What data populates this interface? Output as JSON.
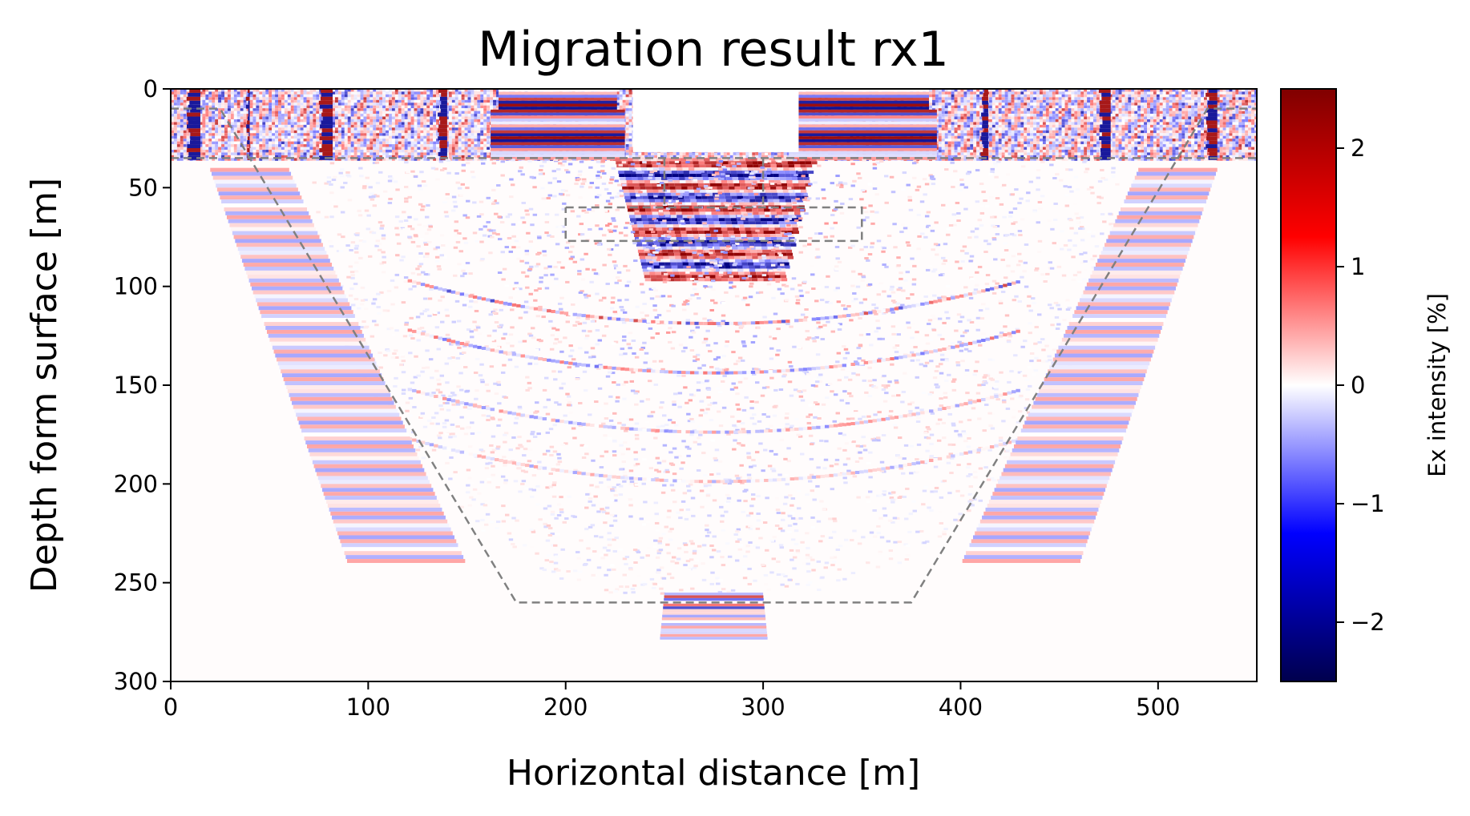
{
  "chart_data": {
    "type": "heatmap",
    "title": "Migration result rx1",
    "xlabel": "Horizontal distance [m]",
    "ylabel": "Depth form surface [m]",
    "xlim": [
      0,
      550
    ],
    "ylim": [
      300,
      0
    ],
    "x_ticks": [
      0,
      100,
      200,
      300,
      400,
      500
    ],
    "x_tick_labels": [
      "0",
      "100",
      "200",
      "300",
      "400",
      "500"
    ],
    "y_ticks": [
      0,
      50,
      100,
      150,
      200,
      250,
      300
    ],
    "y_tick_labels": [
      "0",
      "50",
      "100",
      "150",
      "200",
      "250",
      "300"
    ],
    "colormap": "seismic",
    "colorbar": {
      "label": "Ex intensity [%]",
      "range": [
        -2.5,
        2.5
      ],
      "ticks": [
        2,
        1,
        0,
        -1,
        -2
      ],
      "tick_labels": [
        "2",
        "1",
        "0",
        "−1",
        "−2"
      ]
    },
    "overlays": [
      {
        "name": "outer-trapezoid",
        "style": "dashed",
        "color": "#808080",
        "points": [
          [
            0,
            10
          ],
          [
            25,
            10
          ],
          [
            40,
            35
          ],
          [
            175,
            260
          ],
          [
            375,
            260
          ],
          [
            510,
            35
          ],
          [
            525,
            10
          ],
          [
            550,
            10
          ]
        ]
      },
      {
        "name": "top-layer-line",
        "style": "dashed",
        "color": "#808080",
        "points": [
          [
            0,
            35
          ],
          [
            550,
            35
          ]
        ]
      },
      {
        "name": "target-box",
        "style": "dashed",
        "color": "#808080",
        "points": [
          [
            200,
            60
          ],
          [
            350,
            60
          ],
          [
            350,
            77
          ],
          [
            200,
            77
          ],
          [
            200,
            60
          ]
        ]
      },
      {
        "name": "inner-divider-left",
        "style": "dashed",
        "color": "#808080",
        "points": [
          [
            250,
            35
          ],
          [
            250,
            60
          ]
        ]
      },
      {
        "name": "inner-divider-right",
        "style": "dashed",
        "color": "#808080",
        "points": [
          [
            300,
            35
          ],
          [
            300,
            60
          ]
        ]
      }
    ],
    "colors": {
      "positive": "#b40000",
      "negative": "#0000c8",
      "zero": "#ffffff",
      "overlay": "#808080"
    }
  }
}
